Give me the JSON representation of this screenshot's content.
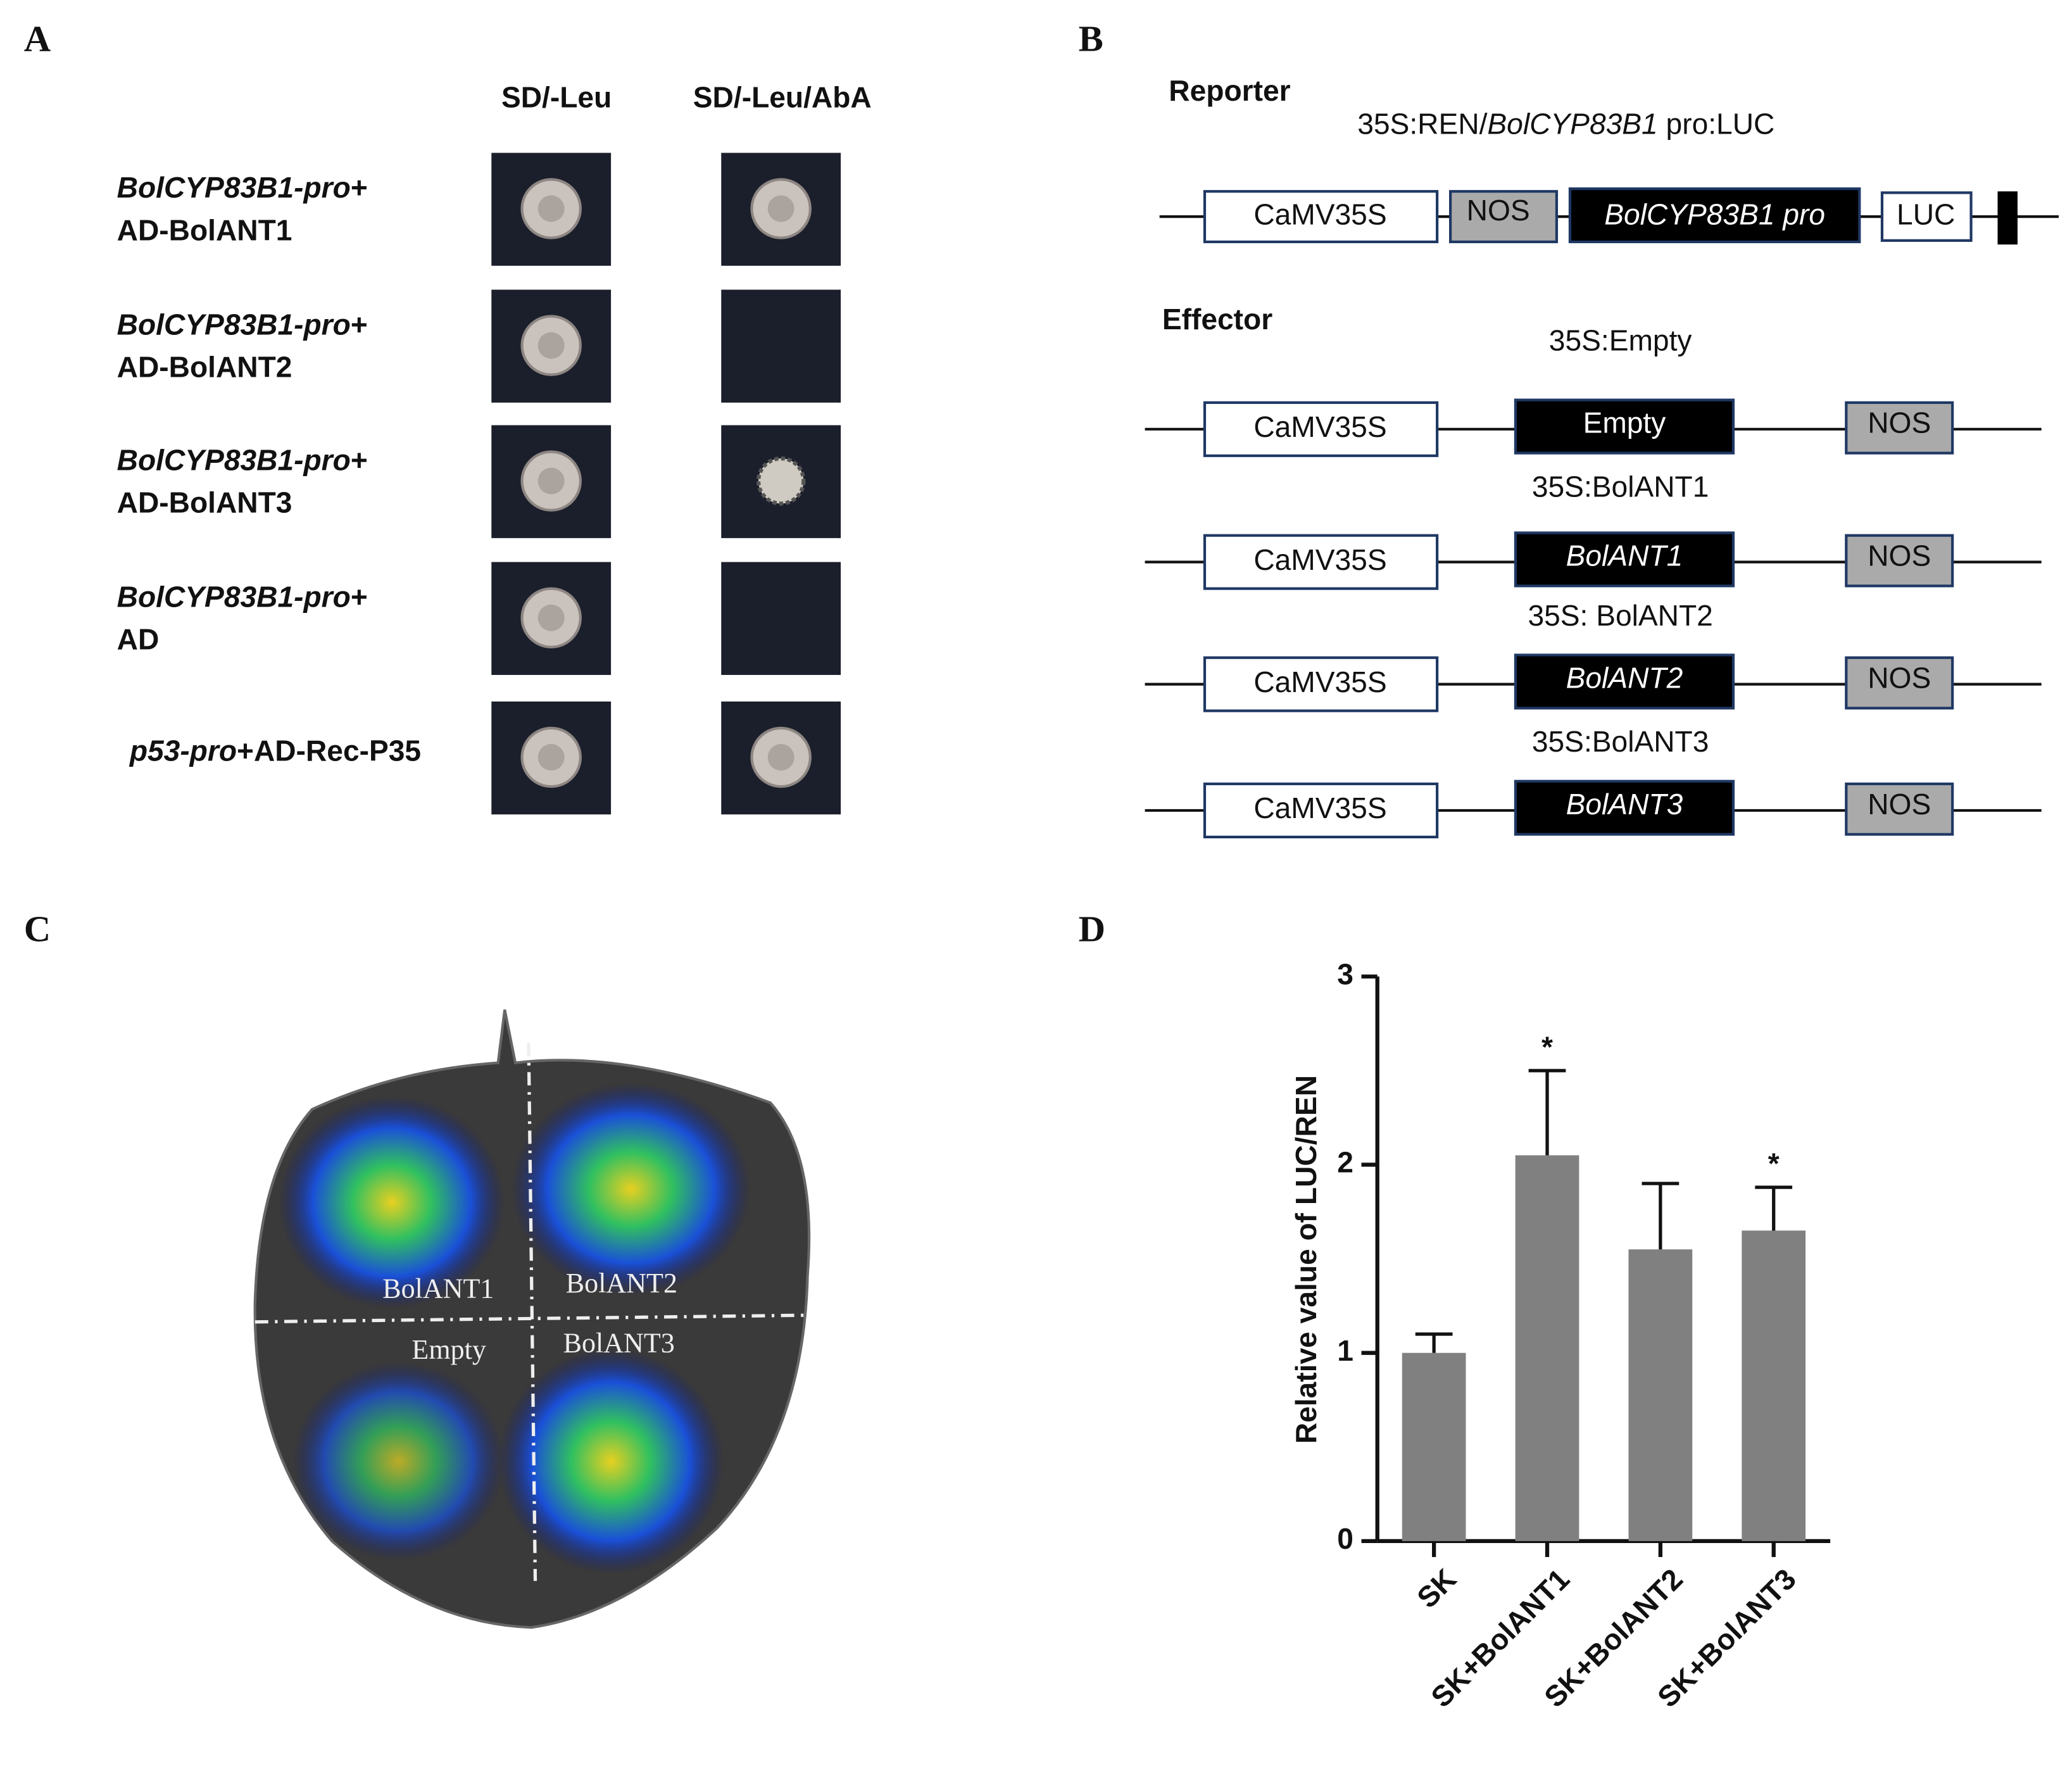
{
  "panel_a": {
    "letter": "A",
    "columns": [
      "SD/-Leu",
      "SD/-Leu/AbA"
    ],
    "rows": [
      {
        "promoter": "BolCYP83B1-pro",
        "rest": "+",
        "effector": "AD-BolANT1"
      },
      {
        "promoter": "BolCYP83B1-pro",
        "rest": "+",
        "effector": "AD-BolANT2"
      },
      {
        "promoter": "BolCYP83B1-pro",
        "rest": "+",
        "effector": "AD-BolANT3"
      },
      {
        "promoter": "BolCYP83B1-pro",
        "rest": "+",
        "effector": "AD"
      },
      {
        "promoter": "p53-pro",
        "rest": "+AD-Rec-P35"
      }
    ]
  },
  "panel_b": {
    "letter": "B",
    "reporter": {
      "title": "Reporter",
      "label_prefix": "35S:REN/",
      "label_gene": "BolCYP83B1",
      "label_suffix": "  pro:LUC",
      "elements": [
        "CaMV35S",
        "NOS",
        "BolCYP83B1  pro",
        "LUC"
      ]
    },
    "effector": {
      "title": "Effector",
      "constructs": [
        {
          "label": "35S:Empty",
          "elements": [
            "CaMV35S",
            "Empty",
            "NOS"
          ]
        },
        {
          "label": "35S:BolANT1",
          "elements": [
            "CaMV35S",
            "BolANT1",
            "NOS"
          ]
        },
        {
          "label": "35S: BolANT2",
          "elements": [
            "CaMV35S",
            "BolANT2",
            "NOS"
          ]
        },
        {
          "label": "35S:BolANT3",
          "elements": [
            "CaMV35S",
            "BolANT3",
            "NOS"
          ]
        }
      ]
    }
  },
  "panel_c": {
    "letter": "C",
    "labels": [
      "BolANT1",
      "BolANT2",
      "Empty",
      "BolANT3"
    ]
  },
  "chart_data": {
    "type": "bar",
    "letter": "D",
    "y_label": "Relative value of LUC/REN",
    "categories": [
      "SK",
      "SK+BolANT1",
      "SK+BolANT2",
      "SK+BolANT3"
    ],
    "values": [
      1.0,
      2.05,
      1.55,
      1.65
    ],
    "errors": [
      0.1,
      0.45,
      0.35,
      0.23
    ],
    "significance": [
      null,
      "*",
      null,
      "*"
    ],
    "color": "#808080",
    "ylim": [
      0,
      3
    ],
    "yticks": [
      0,
      1,
      2,
      3
    ]
  }
}
